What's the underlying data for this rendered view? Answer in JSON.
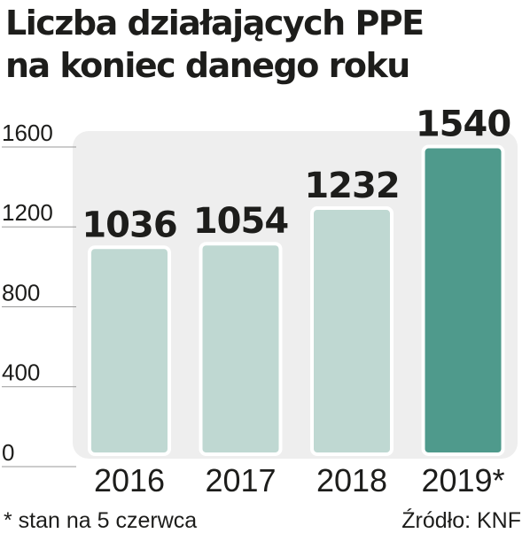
{
  "chart_data": {
    "type": "bar",
    "title": "Liczba działających PPE\nna koniec danego roku",
    "categories": [
      "2016",
      "2017",
      "2018",
      "2019*"
    ],
    "values": [
      1036,
      1054,
      1232,
      1540
    ],
    "value_labels": [
      "1036",
      "1054",
      "1232",
      "1540"
    ],
    "y_ticks": [
      "0",
      "400",
      "800",
      "1200",
      "1600"
    ],
    "ylim": [
      0,
      1600
    ],
    "highlight_index": 3,
    "colors": {
      "bar": "#bfd8d2",
      "bar_highlight": "#4f9a8c",
      "bar_edge": "#ffffff",
      "panel": "#eeeeee"
    },
    "grid": false
  },
  "footnote": "* stan na 5 czerwca",
  "source": "Źródło: KNF"
}
